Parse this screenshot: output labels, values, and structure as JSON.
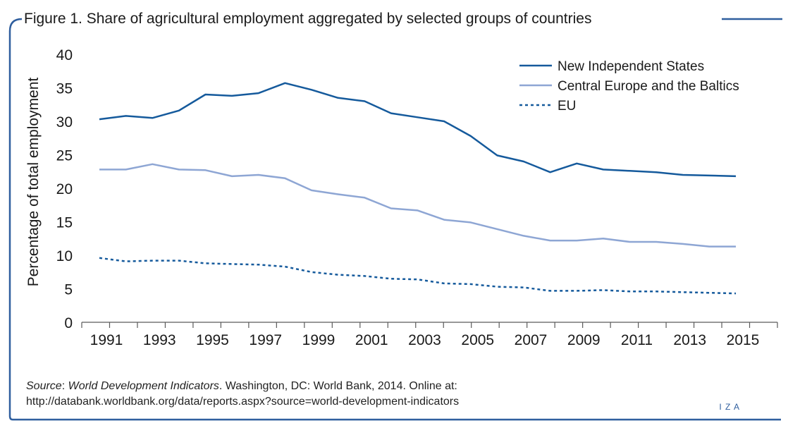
{
  "figure": {
    "title": "Figure 1. Share of agricultural employment aggregated by selected groups of countries",
    "logo_text": "I Z A"
  },
  "source": {
    "label": "Source",
    "sep": ": ",
    "title": "World Development Indicators",
    "rest": ". Washington, DC: World Bank, 2014. Online at:",
    "url": "http://databank.worldbank.org/data/reports.aspx?source=world-development-indicators"
  },
  "colors": {
    "dark_blue": "#155a9c",
    "light_blue": "#8ea6d4",
    "frame": "#2f5e9e",
    "axis": "#5a5a5a",
    "text": "#1a1a1a"
  },
  "chart_data": {
    "type": "line",
    "title": "Figure 1. Share of agricultural employment aggregated by selected groups of countries",
    "xlabel": "",
    "ylabel": "Percentage of total employment",
    "ylim": [
      0,
      40
    ],
    "yticks": [
      "0",
      "5",
      "10",
      "15",
      "20",
      "25",
      "30",
      "35",
      "40"
    ],
    "x": [
      1991,
      1992,
      1993,
      1994,
      1995,
      1996,
      1997,
      1998,
      1999,
      2000,
      2001,
      2002,
      2003,
      2004,
      2005,
      2006,
      2007,
      2008,
      2009,
      2010,
      2011,
      2012,
      2013,
      2014,
      2015
    ],
    "xtick_labels": [
      "1991",
      "1993",
      "1995",
      "1997",
      "1999",
      "2001",
      "2003",
      "2005",
      "2007",
      "2009",
      "2011",
      "2013",
      "2015"
    ],
    "legend_position": "top-right",
    "grid": false,
    "series": [
      {
        "name": "New Independent States",
        "style": "solid",
        "color": "#155a9c",
        "values": [
          30.3,
          30.8,
          30.5,
          31.6,
          34.0,
          33.8,
          34.2,
          35.7,
          34.7,
          33.5,
          33.0,
          31.2,
          30.6,
          30.0,
          27.8,
          24.9,
          24.0,
          22.4,
          23.7,
          22.8,
          22.6,
          22.4,
          22.0,
          21.9,
          21.8
        ]
      },
      {
        "name": "Central Europe and the Baltics",
        "style": "solid",
        "color": "#8ea6d4",
        "values": [
          22.8,
          22.8,
          23.6,
          22.8,
          22.7,
          21.8,
          22.0,
          21.5,
          19.7,
          19.1,
          18.6,
          17.0,
          16.7,
          15.3,
          14.9,
          13.9,
          12.9,
          12.2,
          12.2,
          12.5,
          12.0,
          12.0,
          11.7,
          11.3,
          11.3
        ]
      },
      {
        "name": "EU",
        "style": "dashed",
        "color": "#155a9c",
        "values": [
          9.6,
          9.1,
          9.2,
          9.2,
          8.8,
          8.7,
          8.6,
          8.3,
          7.5,
          7.1,
          6.9,
          6.5,
          6.4,
          5.8,
          5.7,
          5.3,
          5.2,
          4.7,
          4.7,
          4.8,
          4.6,
          4.6,
          4.5,
          4.4,
          4.3
        ]
      }
    ]
  }
}
